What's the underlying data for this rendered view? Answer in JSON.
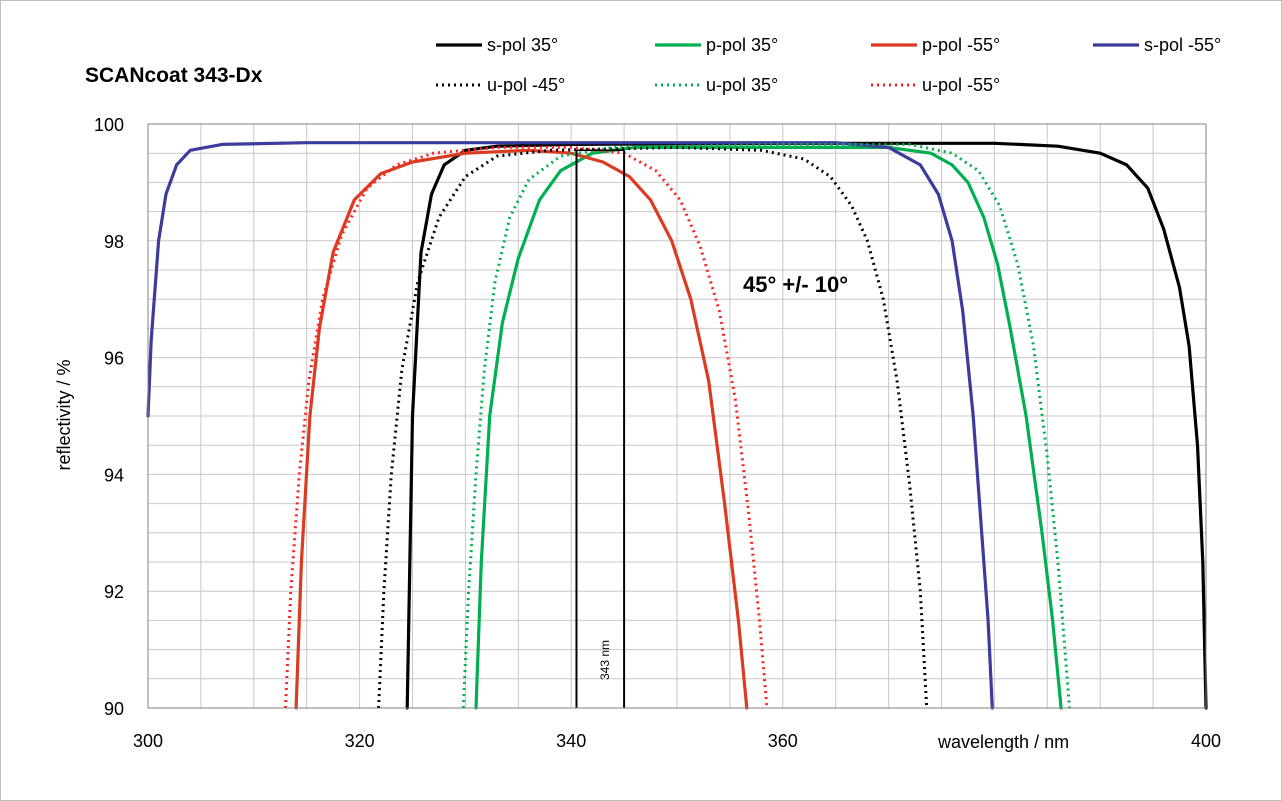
{
  "chart_data": {
    "type": "line",
    "title": "SCANcoat  343-Dx",
    "xlabel": "wavelength / nm",
    "ylabel": "reflectivity / %",
    "xlim": [
      300,
      400
    ],
    "ylim": [
      90,
      100
    ],
    "x_ticks": [
      "300",
      "320",
      "340",
      "360",
      "400"
    ],
    "y_ticks": [
      "90",
      "92",
      "94",
      "96",
      "98",
      "100"
    ],
    "grid": true,
    "legend_position": "top",
    "annotations": {
      "angle_range": "45° +/- 10°",
      "center_wavelength": "343 nm"
    },
    "marker_lines": [
      340.5,
      345
    ],
    "series": [
      {
        "name": "s-pol 35°",
        "color": "#000000",
        "style": "solid",
        "points": [
          [
            324.5,
            90
          ],
          [
            325,
            95
          ],
          [
            325.8,
            97.8
          ],
          [
            326.8,
            98.8
          ],
          [
            328,
            99.3
          ],
          [
            330,
            99.55
          ],
          [
            333,
            99.62
          ],
          [
            340,
            99.65
          ],
          [
            360,
            99.67
          ],
          [
            380,
            99.67
          ],
          [
            386,
            99.62
          ],
          [
            390,
            99.5
          ],
          [
            392.5,
            99.3
          ],
          [
            394.5,
            98.9
          ],
          [
            396,
            98.2
          ],
          [
            397.5,
            97.2
          ],
          [
            398.4,
            96.2
          ],
          [
            399.2,
            94.5
          ],
          [
            399.7,
            92.5
          ],
          [
            400,
            90
          ]
        ]
      },
      {
        "name": "p-pol 35°",
        "color": "#00b050",
        "style": "solid",
        "points": [
          [
            331,
            90
          ],
          [
            331.5,
            92.5
          ],
          [
            332.3,
            95
          ],
          [
            333.5,
            96.6
          ],
          [
            335,
            97.7
          ],
          [
            337,
            98.7
          ],
          [
            339,
            99.2
          ],
          [
            342,
            99.5
          ],
          [
            346,
            99.6
          ],
          [
            360,
            99.6
          ],
          [
            370,
            99.6
          ],
          [
            374,
            99.5
          ],
          [
            376,
            99.3
          ],
          [
            377.5,
            99
          ],
          [
            379,
            98.4
          ],
          [
            380.3,
            97.6
          ],
          [
            381.5,
            96.5
          ],
          [
            383,
            95
          ],
          [
            384.5,
            93
          ],
          [
            385.5,
            91.5
          ],
          [
            386.3,
            90
          ]
        ]
      },
      {
        "name": "p-pol -55°",
        "color": "#dc3b21",
        "style": "solid",
        "points": [
          [
            314,
            90
          ],
          [
            314.5,
            92.5
          ],
          [
            315.3,
            95
          ],
          [
            316.2,
            96.5
          ],
          [
            317.5,
            97.8
          ],
          [
            319.5,
            98.7
          ],
          [
            322,
            99.15
          ],
          [
            325,
            99.35
          ],
          [
            330,
            99.5
          ],
          [
            336,
            99.55
          ],
          [
            340,
            99.5
          ],
          [
            343,
            99.35
          ],
          [
            345.5,
            99.1
          ],
          [
            347.5,
            98.7
          ],
          [
            349.5,
            98
          ],
          [
            351.3,
            97
          ],
          [
            353,
            95.6
          ],
          [
            354.5,
            93.5
          ],
          [
            355.8,
            91.5
          ],
          [
            356.6,
            90
          ]
        ]
      },
      {
        "name": "s-pol -55°",
        "color": "#3c3c9c",
        "style": "solid",
        "points": [
          [
            300,
            95
          ],
          [
            300.3,
            96.3
          ],
          [
            301,
            98
          ],
          [
            301.7,
            98.8
          ],
          [
            302.7,
            99.3
          ],
          [
            304,
            99.55
          ],
          [
            307,
            99.65
          ],
          [
            315,
            99.68
          ],
          [
            340,
            99.68
          ],
          [
            365,
            99.68
          ],
          [
            370,
            99.6
          ],
          [
            373,
            99.3
          ],
          [
            374.7,
            98.8
          ],
          [
            376,
            98
          ],
          [
            377,
            96.8
          ],
          [
            378,
            95
          ],
          [
            378.8,
            93
          ],
          [
            379.4,
            91.5
          ],
          [
            379.8,
            90
          ]
        ]
      },
      {
        "name": "u-pol -45°",
        "color": "#000000",
        "style": "dotted",
        "points": [
          [
            321.8,
            90
          ],
          [
            322.3,
            92
          ],
          [
            323,
            94
          ],
          [
            324,
            95.8
          ],
          [
            325.5,
            97.3
          ],
          [
            327.5,
            98.4
          ],
          [
            330,
            99.1
          ],
          [
            333,
            99.45
          ],
          [
            338,
            99.55
          ],
          [
            350,
            99.6
          ],
          [
            358,
            99.55
          ],
          [
            362,
            99.4
          ],
          [
            364.5,
            99.1
          ],
          [
            366.5,
            98.6
          ],
          [
            368,
            98
          ],
          [
            369.5,
            97
          ],
          [
            370.8,
            95.6
          ],
          [
            372,
            93.8
          ],
          [
            373,
            92
          ],
          [
            373.6,
            90
          ]
        ]
      },
      {
        "name": "u-pol 35°",
        "color": "#00b050",
        "style": "dotted",
        "points": [
          [
            329.8,
            90
          ],
          [
            330.3,
            92
          ],
          [
            331,
            94
          ],
          [
            331.8,
            95.8
          ],
          [
            332.8,
            97.3
          ],
          [
            334.2,
            98.4
          ],
          [
            336,
            99.05
          ],
          [
            339,
            99.45
          ],
          [
            344,
            99.6
          ],
          [
            360,
            99.65
          ],
          [
            372,
            99.65
          ],
          [
            376,
            99.5
          ],
          [
            378.5,
            99.2
          ],
          [
            380.5,
            98.6
          ],
          [
            382.2,
            97.6
          ],
          [
            383.7,
            96.2
          ],
          [
            385,
            94.3
          ],
          [
            386,
            92.5
          ],
          [
            386.8,
            90.7
          ],
          [
            387.1,
            90
          ]
        ]
      },
      {
        "name": "u-pol -55°",
        "color": "#ff2020",
        "style": "dotted",
        "points": [
          [
            313,
            90
          ],
          [
            313.5,
            92
          ],
          [
            314.3,
            94
          ],
          [
            315.2,
            95.6
          ],
          [
            316.5,
            97
          ],
          [
            318.3,
            98.1
          ],
          [
            320.7,
            98.9
          ],
          [
            323.5,
            99.3
          ],
          [
            327,
            99.5
          ],
          [
            333,
            99.6
          ],
          [
            340,
            99.6
          ],
          [
            345,
            99.5
          ],
          [
            348,
            99.2
          ],
          [
            350.3,
            98.7
          ],
          [
            352.2,
            97.9
          ],
          [
            354,
            96.8
          ],
          [
            355.5,
            95.3
          ],
          [
            356.8,
            93.3
          ],
          [
            357.8,
            91.5
          ],
          [
            358.5,
            90
          ]
        ]
      }
    ]
  }
}
